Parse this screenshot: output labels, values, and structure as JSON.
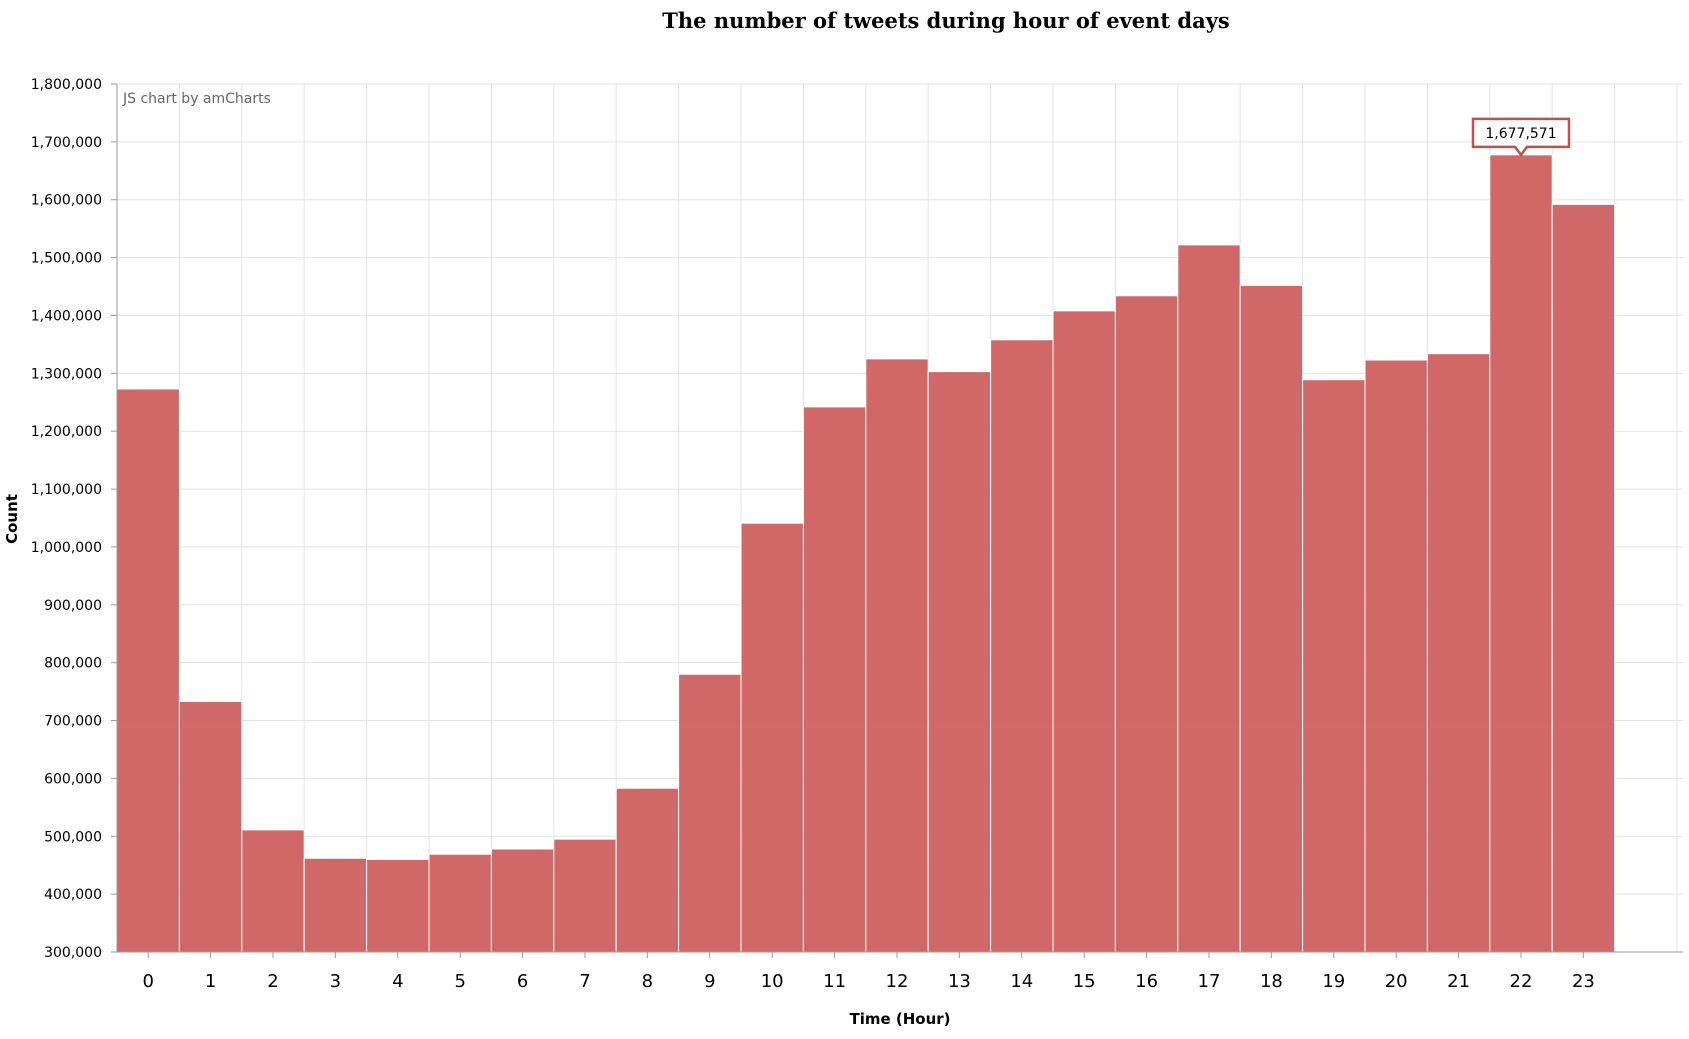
{
  "chart_data": {
    "type": "bar",
    "title": "The number of tweets during hour of event days",
    "xlabel": "Time (Hour)",
    "ylabel": "Count",
    "credit": "JS chart by amCharts",
    "categories": [
      "0",
      "1",
      "2",
      "3",
      "4",
      "5",
      "6",
      "7",
      "8",
      "9",
      "10",
      "11",
      "12",
      "13",
      "14",
      "15",
      "16",
      "17",
      "18",
      "19",
      "20",
      "21",
      "22",
      "23"
    ],
    "values": [
      1273000,
      733000,
      511000,
      462000,
      460000,
      469000,
      478000,
      495000,
      583000,
      780000,
      1041000,
      1242000,
      1325000,
      1303000,
      1358000,
      1408000,
      1434000,
      1522000,
      1452000,
      1289000,
      1323000,
      1334000,
      1677571,
      1592000
    ],
    "ylim": [
      300000,
      1800000
    ],
    "yticks": [
      "300,000",
      "400,000",
      "500,000",
      "600,000",
      "700,000",
      "800,000",
      "900,000",
      "1,000,000",
      "1,100,000",
      "1,200,000",
      "1,300,000",
      "1,400,000",
      "1,500,000",
      "1,600,000",
      "1,700,000",
      "1,800,000"
    ],
    "grid": true,
    "bar_color": "#cd5c5c",
    "tooltip": {
      "category": "22",
      "label": "1,677,571"
    }
  }
}
